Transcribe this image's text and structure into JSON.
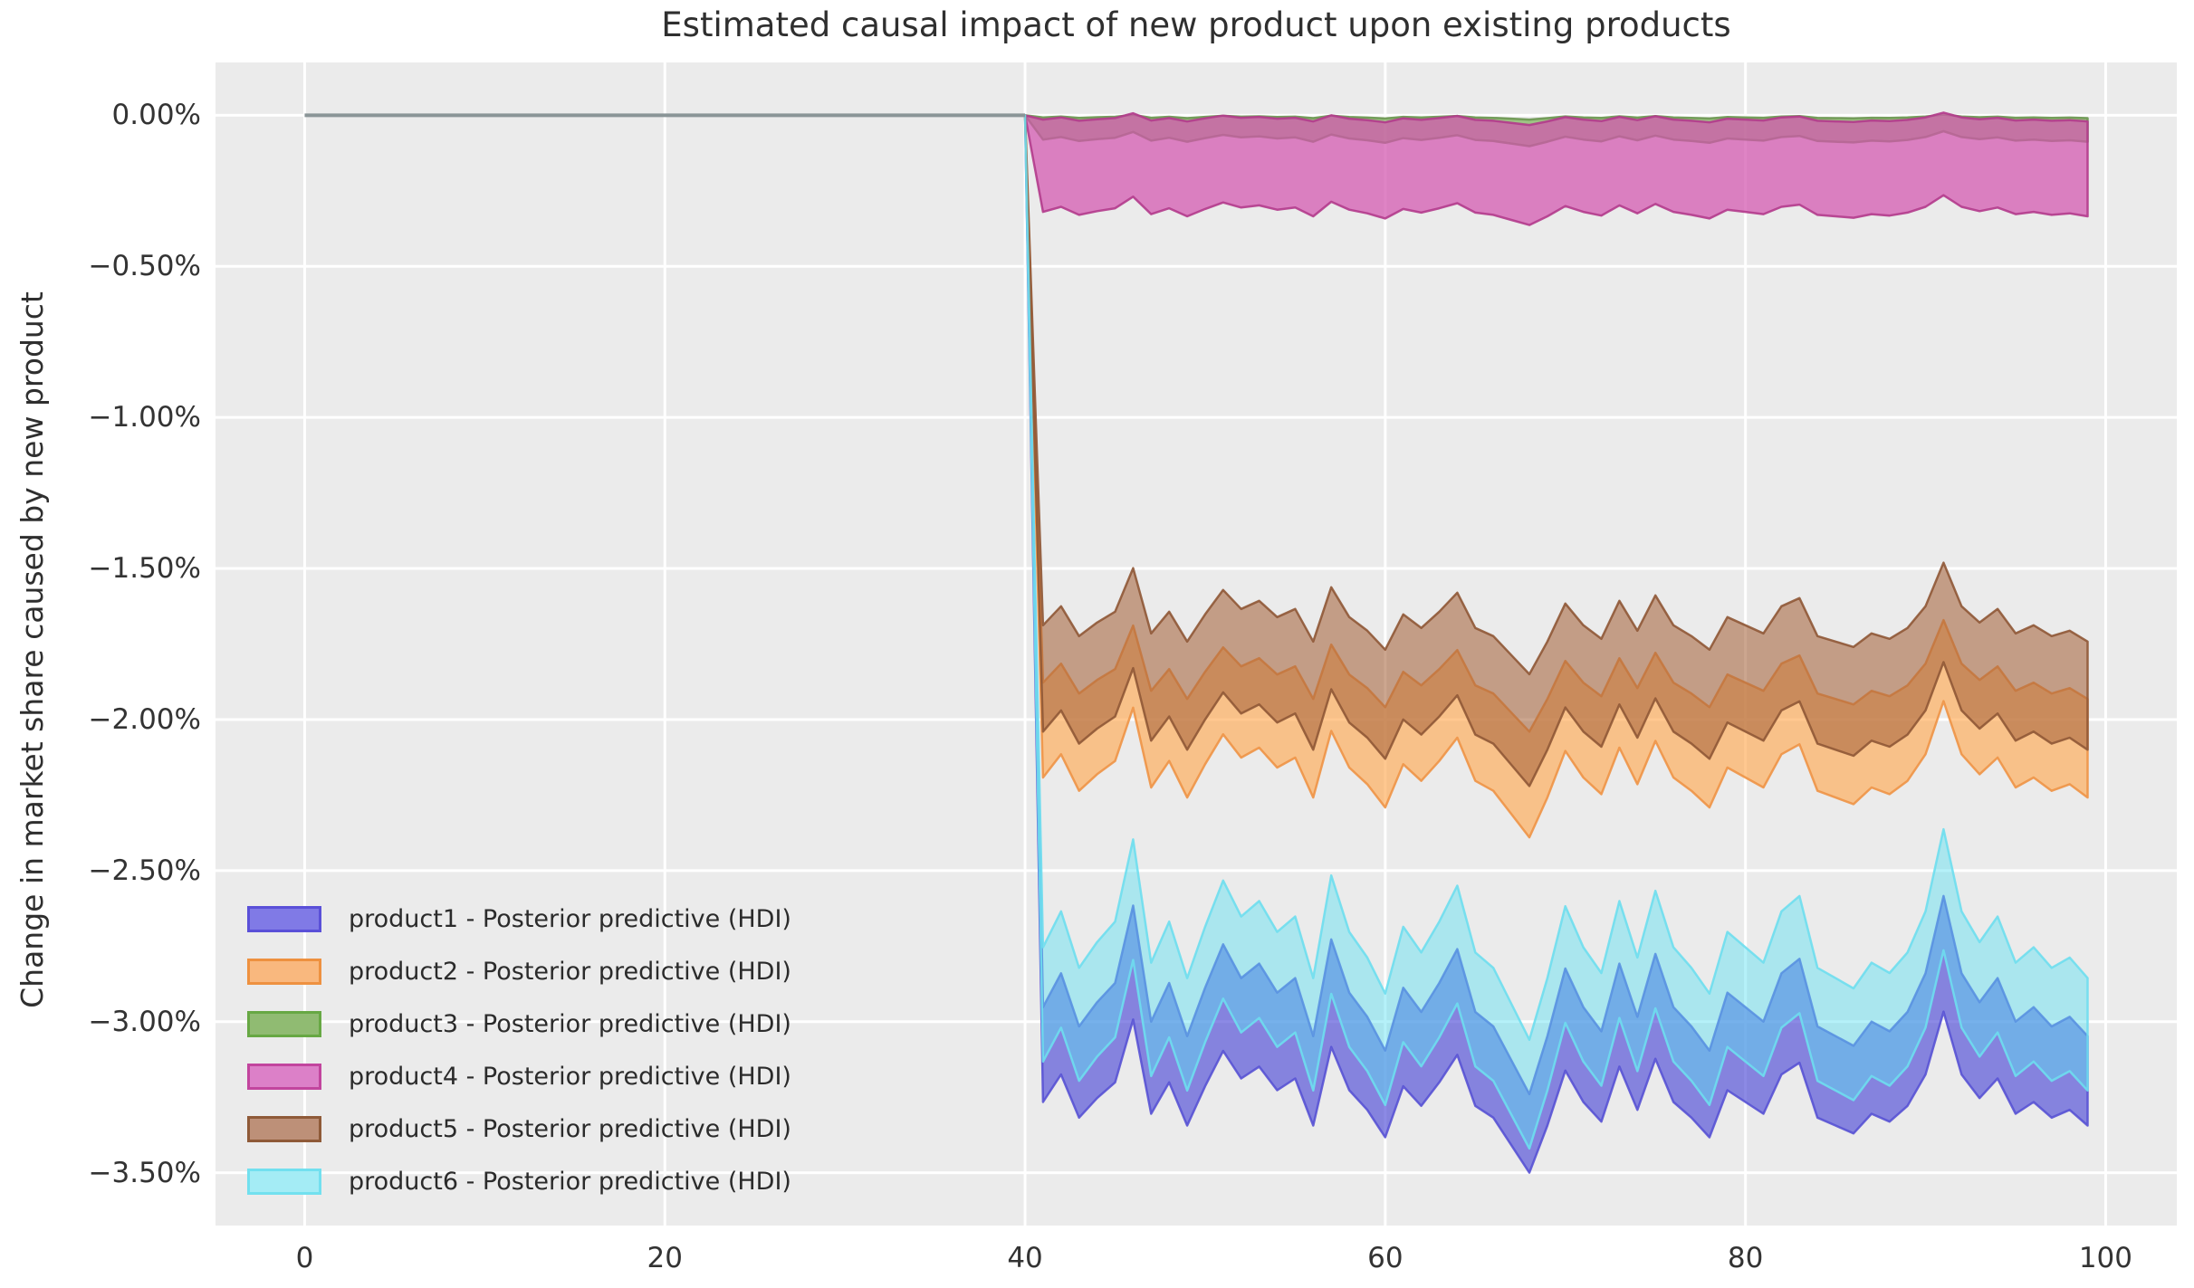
{
  "title": "Estimated causal impact of new product upon existing products",
  "axes": {
    "ylabel": "Change in market share caused by new product",
    "xlim": [
      -4.95,
      103.95
    ],
    "ylim": [
      -3.675,
      0.175
    ],
    "x_tick_values": [
      0,
      20,
      40,
      60,
      80,
      100
    ],
    "x_tick_labels": [
      "0",
      "20",
      "40",
      "60",
      "80",
      "100"
    ],
    "y_tick_values": [
      0,
      -0.5,
      -1.0,
      -1.5,
      -2.0,
      -2.5,
      -3.0,
      -3.5
    ],
    "y_tick_labels": [
      "0.00%",
      "−0.50%",
      "−1.00%",
      "−1.50%",
      "−2.00%",
      "−2.50%",
      "−3.00%",
      "−3.50%"
    ],
    "grid_color": "#ffffff",
    "plot_bg_color": "#ebebeb",
    "text_color": "#333333"
  },
  "legend": [
    {
      "label": "product1 - Posterior predictive (HDI)",
      "fill": "#807ae6",
      "edge": "#5a50d8"
    },
    {
      "label": "product2 - Posterior predictive (HDI)",
      "fill": "#f9b87e",
      "edge": "#ee9140"
    },
    {
      "label": "product3 - Posterior predictive (HDI)",
      "fill": "#90bb72",
      "edge": "#67a844"
    },
    {
      "label": "product4 - Posterior predictive (HDI)",
      "fill": "#dc80c8",
      "edge": "#c2459e"
    },
    {
      "label": "product5 - Posterior predictive (HDI)",
      "fill": "#bd9078",
      "edge": "#8f5a38"
    },
    {
      "label": "product6 - Posterior predictive (HDI)",
      "fill": "#a4ecf5",
      "edge": "#72e0ef"
    }
  ],
  "chart_data": {
    "type": "area",
    "description": "Posterior predictive HDI bands of change in market share (%) for six products; zero before intervention at x=40, shifted bands after. Band edges = hi_base + hi_amp*pattern and lo_base + lo_amp*pattern.",
    "intervention": {
      "x": 40,
      "value": 0
    },
    "pre_period": {
      "x_start": 0,
      "x_end": 40,
      "value": 0,
      "line_color": "#8a9597"
    },
    "x_post": [
      41,
      42,
      43,
      44,
      45,
      46,
      47,
      48,
      49,
      50,
      51,
      52,
      53,
      54,
      55,
      56,
      57,
      58,
      59,
      60,
      61,
      62,
      63,
      64,
      65,
      66,
      67,
      68,
      69,
      70,
      71,
      72,
      73,
      74,
      75,
      76,
      77,
      78,
      79,
      80,
      81,
      82,
      83,
      84,
      85,
      86,
      87,
      88,
      89,
      90,
      91,
      92,
      93,
      94,
      95,
      96,
      97,
      98,
      99
    ],
    "pattern": [
      -0.04,
      0.1,
      -0.12,
      -0.02,
      0.06,
      0.38,
      -0.1,
      0.06,
      -0.16,
      0.04,
      0.22,
      0.08,
      0.14,
      0.02,
      0.08,
      -0.16,
      0.24,
      0.02,
      -0.08,
      -0.22,
      0.04,
      -0.06,
      0.06,
      0.2,
      -0.06,
      -0.12,
      -0.26,
      -0.4,
      -0.16,
      0.12,
      -0.04,
      -0.14,
      0.14,
      -0.08,
      0.18,
      -0.04,
      -0.12,
      -0.22,
      0.02,
      -0.04,
      -0.1,
      0.1,
      0.16,
      -0.12,
      -0.16,
      -0.2,
      -0.1,
      -0.14,
      -0.06,
      0.1,
      0.42,
      0.1,
      -0.02,
      0.08,
      -0.1,
      -0.04,
      -0.12,
      -0.08,
      -0.16
    ],
    "series": [
      {
        "product": "product1",
        "name": "product1 - Posterior predictive (HDI)",
        "hi_base": -2.92,
        "hi_amp": 0.8,
        "lo_base": -3.24,
        "lo_amp": 0.65,
        "fill": "rgb(75,72,214)",
        "fill_opacity": 0.64,
        "edge": "rgb(88,82,212)"
      },
      {
        "product": "product2",
        "name": "product2 - Posterior predictive (HDI)",
        "hi_base": -1.86,
        "hi_amp": 0.45,
        "lo_base": -2.17,
        "lo_amp": 0.55,
        "fill": "rgb(255,170,85)",
        "fill_opacity": 0.65,
        "edge": "rgb(238,148,70)"
      },
      {
        "product": "product3",
        "name": "product3 - Posterior predictive (HDI)",
        "hi_base": -0.006,
        "hi_amp": 0.02,
        "lo_base": -0.078,
        "lo_amp": 0.06,
        "fill": "rgb(106,168,64)",
        "fill_opacity": 0.6,
        "edge": "rgb(106,150,80)"
      },
      {
        "product": "product4",
        "name": "product4 - Posterior predictive (HDI)",
        "hi_base": -0.012,
        "hi_amp": 0.05,
        "lo_base": -0.315,
        "lo_amp": 0.12,
        "fill": "rgb(210,85,175)",
        "fill_opacity": 0.72,
        "edge": "rgb(178,59,140)"
      },
      {
        "product": "product5",
        "name": "product5 - Posterior predictive (HDI)",
        "hi_base": -1.67,
        "hi_amp": 0.45,
        "lo_base": -2.02,
        "lo_amp": 0.5,
        "fill": "rgb(166,98,58)",
        "fill_opacity": 0.57,
        "edge": "rgb(143,88,54)"
      },
      {
        "product": "product6",
        "name": "product6 - Posterior predictive (HDI)",
        "hi_base": -2.72,
        "hi_amp": 0.85,
        "lo_base": -3.1,
        "lo_amp": 0.8,
        "fill": "rgb(90,225,242)",
        "fill_opacity": 0.45,
        "edge": "rgb(110,222,238)"
      }
    ]
  }
}
